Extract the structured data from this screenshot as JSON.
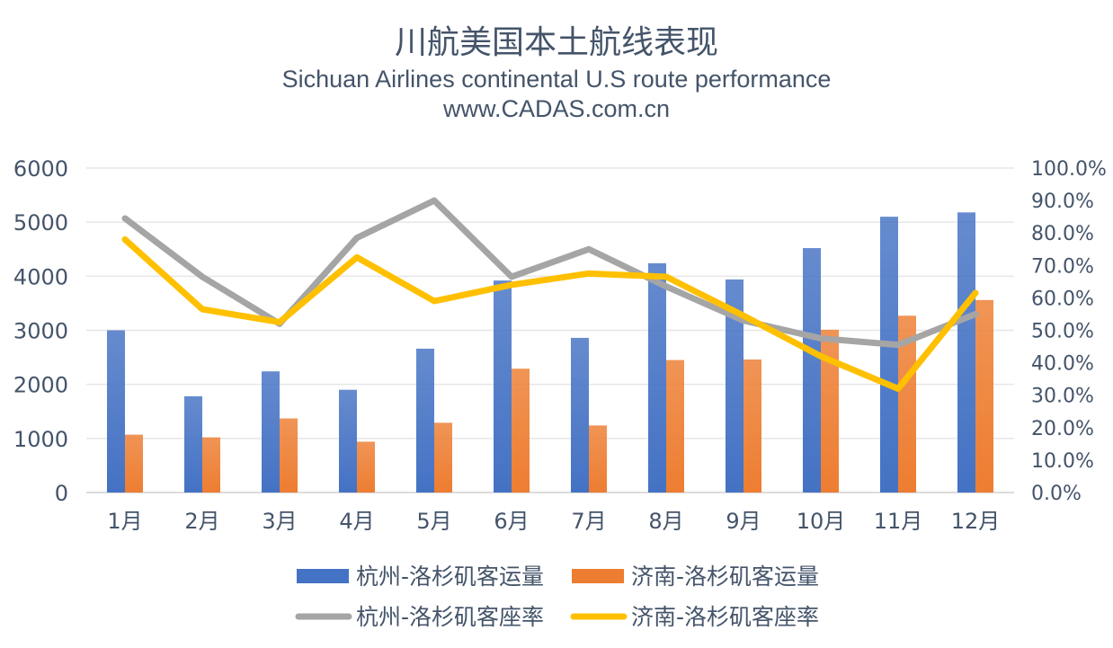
{
  "chart_data": {
    "type": "bar+line",
    "title": "川航美国本土航线表现",
    "subtitle": "Sichuan Airlines continental U.S route performance",
    "source": "www.CADAS.com.cn",
    "categories": [
      "1月",
      "2月",
      "3月",
      "4月",
      "5月",
      "6月",
      "7月",
      "8月",
      "9月",
      "10月",
      "11月",
      "12月"
    ],
    "y_left": {
      "range": [
        0,
        6000
      ],
      "ticks": [
        "0",
        "1000",
        "2000",
        "3000",
        "4000",
        "5000",
        "6000"
      ]
    },
    "y_right": {
      "range": [
        0,
        1
      ],
      "ticks": [
        "0.0%",
        "10.0%",
        "20.0%",
        "30.0%",
        "40.0%",
        "50.0%",
        "60.0%",
        "70.0%",
        "80.0%",
        "90.0%",
        "100.0%"
      ]
    },
    "grid": true,
    "legend_position": "bottom",
    "series": [
      {
        "name": "杭州-洛杉矶客运量",
        "kind": "bar",
        "axis": "left",
        "color": "#4472c4",
        "values": [
          3000,
          1780,
          2240,
          1900,
          2660,
          3920,
          2860,
          4240,
          3940,
          4520,
          5100,
          5180
        ]
      },
      {
        "name": "济南-洛杉矶客运量",
        "kind": "bar",
        "axis": "left",
        "color": "#ed7d31",
        "values": [
          1070,
          1020,
          1370,
          940,
          1290,
          2290,
          1240,
          2450,
          2460,
          3010,
          3270,
          3560
        ]
      },
      {
        "name": "杭州-洛杉矶客座率",
        "kind": "line",
        "axis": "right",
        "color": "#a5a5a5",
        "values": [
          0.845,
          0.665,
          0.52,
          0.785,
          0.9,
          0.665,
          0.75,
          0.635,
          0.53,
          0.475,
          0.455,
          0.55
        ]
      },
      {
        "name": "济南-洛杉矶客座率",
        "kind": "line",
        "axis": "right",
        "color": "#ffc000",
        "values": [
          0.78,
          0.565,
          0.525,
          0.725,
          0.59,
          0.64,
          0.675,
          0.665,
          0.545,
          0.42,
          0.32,
          0.615
        ]
      }
    ]
  }
}
